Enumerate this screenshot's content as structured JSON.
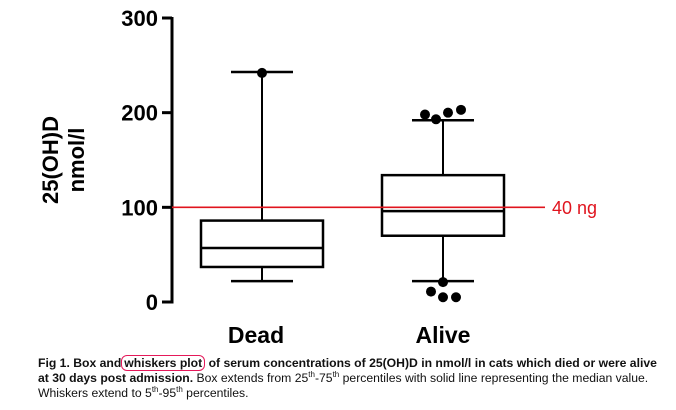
{
  "chart_data": {
    "type": "box",
    "ylabel_line1": "25(OH)D",
    "ylabel_line2": "nmol/l",
    "ylim": [
      0,
      300
    ],
    "yticks": [
      "0",
      "100",
      "200",
      "300"
    ],
    "categories": [
      "Dead",
      "Alive"
    ],
    "series": [
      {
        "name": "Dead",
        "whisker_low": 22,
        "q1": 37,
        "median": 57,
        "q3": 86,
        "whisker_high": 243,
        "outliers": [
          242
        ]
      },
      {
        "name": "Alive",
        "whisker_low": 22,
        "q1": 70,
        "median": 96,
        "q3": 134,
        "whisker_high": 192,
        "outliers": [
          198,
          193,
          200,
          203,
          21,
          11,
          5,
          5
        ]
      }
    ],
    "reference_line": {
      "value": 100,
      "label": "40 ng",
      "color": "#e0141e"
    }
  },
  "caption": {
    "fig_label": "Fig 1.",
    "title_pre": "Box and",
    "title_highlight": "whiskers plot",
    "title_post": "of serum concentrations of 25(OH)D in nmol/l in cats which died or were alive at 30 days post admission.",
    "body_1": "Box extends from 25",
    "sup_1": "th",
    "body_2": "-75",
    "sup_2": "th",
    "body_3": "percentiles with solid line representing the median value. Whiskers extend to 5",
    "sup_3": "th",
    "body_4": "-95",
    "sup_4": "th",
    "body_5": "percentiles."
  }
}
